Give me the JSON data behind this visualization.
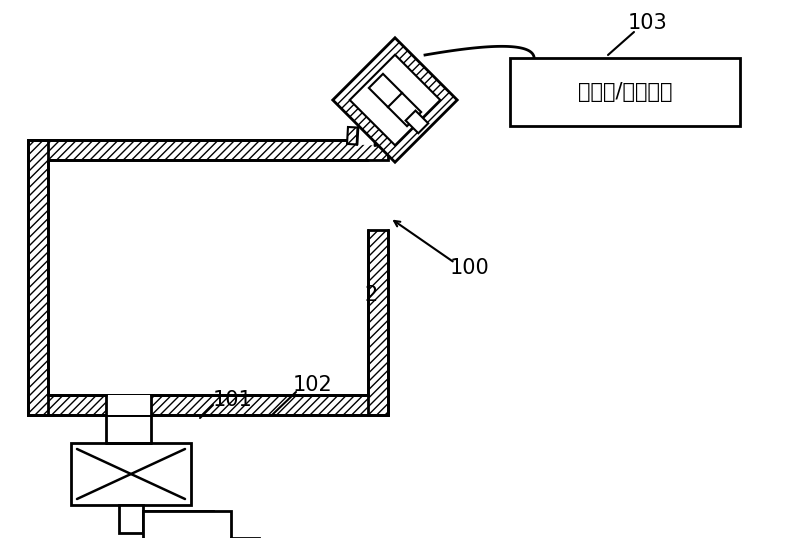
{
  "bg_color": "#ffffff",
  "line_color": "#000000",
  "chinese_text": "动力源/显示装置",
  "label_103": "103",
  "label_100": "100",
  "label_101": "101",
  "label_102": "102",
  "label_2": "2",
  "fig_width": 8.0,
  "fig_height": 5.38
}
